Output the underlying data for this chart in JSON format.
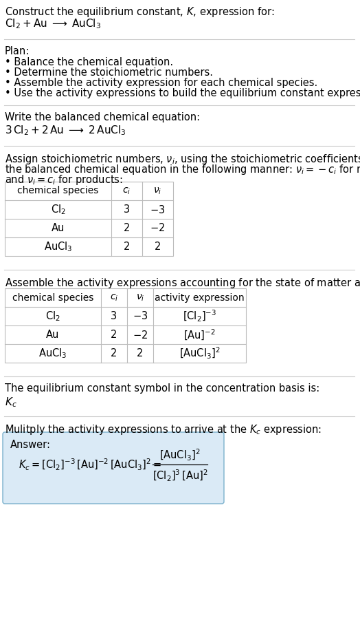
{
  "title_line1": "Construct the equilibrium constant, $K$, expression for:",
  "title_line2": "$\\mathrm{Cl_2 + Au \\;\\longrightarrow\\; AuCl_3}$",
  "plan_header": "Plan:",
  "plan_items": [
    "• Balance the chemical equation.",
    "• Determine the stoichiometric numbers.",
    "• Assemble the activity expression for each chemical species.",
    "• Use the activity expressions to build the equilibrium constant expression."
  ],
  "balanced_eq_header": "Write the balanced chemical equation:",
  "balanced_eq": "$\\mathrm{3\\,Cl_2 + 2\\,Au \\;\\longrightarrow\\; 2\\,AuCl_3}$",
  "stoich_intro1": "Assign stoichiometric numbers, $\\nu_i$, using the stoichiometric coefficients, $c_i$, from",
  "stoich_intro2": "the balanced chemical equation in the following manner: $\\nu_i = -c_i$ for reactants",
  "stoich_intro3": "and $\\nu_i = c_i$ for products:",
  "table1_headers": [
    "chemical species",
    "$c_i$",
    "$\\nu_i$"
  ],
  "table1_rows": [
    [
      "$\\mathrm{Cl_2}$",
      "3",
      "$-3$"
    ],
    [
      "Au",
      "2",
      "$-2$"
    ],
    [
      "$\\mathrm{AuCl_3}$",
      "2",
      "2"
    ]
  ],
  "activity_intro": "Assemble the activity expressions accounting for the state of matter and $\\nu_i$:",
  "table2_headers": [
    "chemical species",
    "$c_i$",
    "$\\nu_i$",
    "activity expression"
  ],
  "table2_rows": [
    [
      "$\\mathrm{Cl_2}$",
      "3",
      "$-3$",
      "$[\\mathrm{Cl_2}]^{-3}$"
    ],
    [
      "Au",
      "2",
      "$-2$",
      "$[\\mathrm{Au}]^{-2}$"
    ],
    [
      "$\\mathrm{AuCl_3}$",
      "2",
      "2",
      "$[\\mathrm{AuCl_3}]^{2}$"
    ]
  ],
  "kc_intro": "The equilibrium constant symbol in the concentration basis is:",
  "kc_symbol": "$K_c$",
  "multiply_intro": "Mulitply the activity expressions to arrive at the $K_c$ expression:",
  "answer_label": "Answer:",
  "answer_box_color": "#daeaf6",
  "answer_box_border": "#7ab0cc",
  "bg_color": "#ffffff",
  "text_color": "#000000",
  "table_line_color": "#bbbbbb",
  "section_line_color": "#cccccc",
  "figw": 5.24,
  "figh": 9.01,
  "dpi": 100
}
